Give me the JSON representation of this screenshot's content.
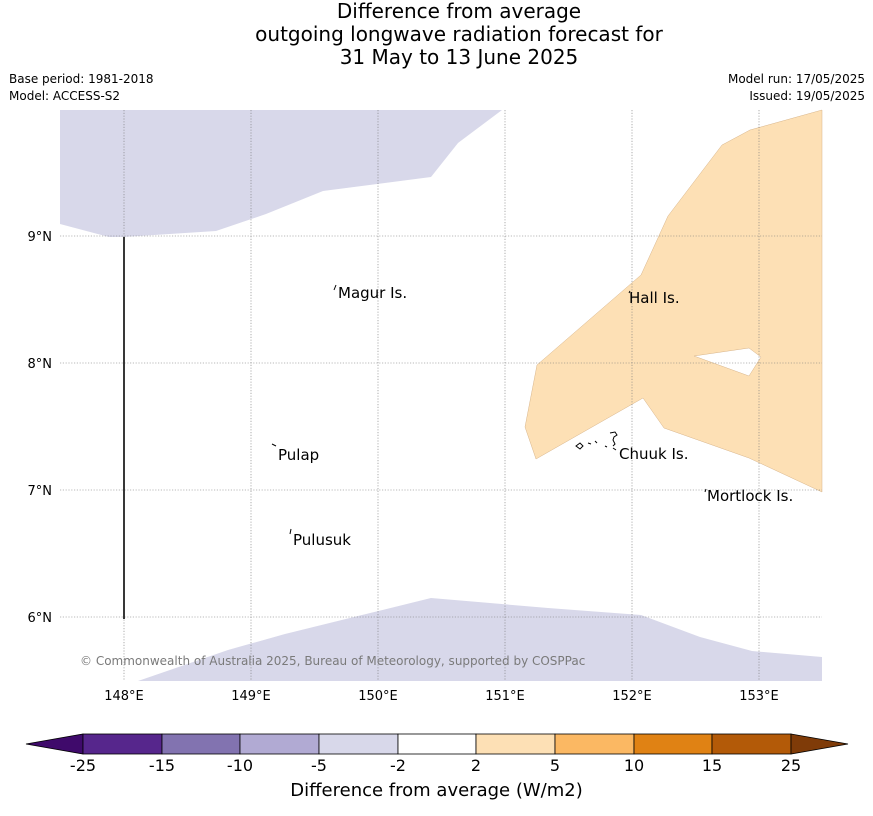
{
  "title": {
    "line1": "Difference from average",
    "line2": "outgoing longwave radiation forecast for",
    "line3": "31 May to 13 June 2025"
  },
  "meta": {
    "base_period": "Base period: 1981-2018",
    "model": "Model: ACCESS-S2",
    "model_run": "Model run: 17/05/2025",
    "issued": "Issued: 19/05/2025"
  },
  "map": {
    "lon_ticks": [
      "148°E",
      "149°E",
      "150°E",
      "151°E",
      "152°E",
      "153°E"
    ],
    "lat_ticks": [
      "9°N",
      "8°N",
      "7°N",
      "6°N"
    ],
    "places": [
      "Magur Is.",
      "Hall Is.",
      "Pulap",
      "Chuuk Is.",
      "Mortlock Is.",
      "Pulusuk"
    ],
    "copyright": "© Commonwealth of Australia 2025, Bureau of Meteorology, supported by COSPPac"
  },
  "colorbar": {
    "ticks": [
      "-25",
      "-15",
      "-10",
      "-5",
      "-2",
      "2",
      "5",
      "10",
      "15",
      "25"
    ],
    "colors": [
      "#3f0a6b",
      "#56268c",
      "#8273b0",
      "#b1aad3",
      "#d8d8ea",
      "#ffffff",
      "#fde0b5",
      "#fbb863",
      "#e08214",
      "#b35a08",
      "#7f3b08"
    ],
    "label": "Difference from average (W/m2)"
  }
}
